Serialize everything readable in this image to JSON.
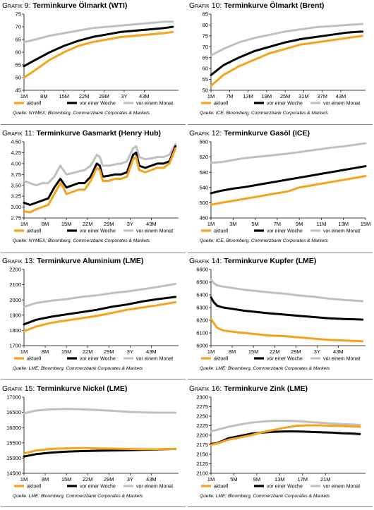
{
  "colors": {
    "aktuell": "#f7a21b",
    "woche": "#000000",
    "monat": "#c0c0c0"
  },
  "legend": [
    "aktuell",
    "vor einer Woche",
    "vor einem Monat"
  ],
  "chart_data": [
    {
      "type": "line",
      "prefix": "Grafik 9:",
      "name": "Terminkurve Ölmarkt (WTI)",
      "source": "Quelle: NYMEX; Bloomberg, Commerzbank Corporates & Markets",
      "ylim": [
        45,
        75
      ],
      "yticks": [
        45,
        50,
        55,
        60,
        65,
        70,
        75
      ],
      "xlim": [
        1,
        55
      ],
      "xticks": [
        {
          "x": 1,
          "label": "1M"
        },
        {
          "x": 8,
          "label": "8M"
        },
        {
          "x": 15,
          "label": "15M"
        },
        {
          "x": 22,
          "label": "22M"
        },
        {
          "x": 29,
          "label": "29M"
        },
        {
          "x": 36,
          "label": "3Y"
        },
        {
          "x": 43,
          "label": "43M"
        }
      ],
      "x": [
        1,
        5,
        10,
        15,
        20,
        25,
        30,
        35,
        40,
        45,
        50,
        53
      ],
      "series": [
        {
          "name": "aktuell",
          "values": [
            50,
            53,
            57,
            60,
            62.5,
            64,
            65,
            66,
            66.5,
            67,
            67.5,
            68
          ]
        },
        {
          "name": "vor einer Woche",
          "values": [
            54.5,
            57,
            60,
            62.5,
            64.5,
            66,
            67,
            68,
            68.5,
            69,
            69.5,
            70
          ]
        },
        {
          "name": "vor einem Monat",
          "values": [
            64,
            65,
            66.5,
            67.5,
            68.5,
            69.5,
            70,
            70.5,
            71,
            71.5,
            72,
            72
          ]
        }
      ]
    },
    {
      "type": "line",
      "prefix": "Grafik 10:",
      "name": "Terminkurve Ölmarkt (Brent)",
      "source": "Quelle: ICE, Bloomberg, Commerzbank Corporates & Markets",
      "ylim": [
        50,
        85
      ],
      "yticks": [
        50,
        55,
        60,
        65,
        70,
        75,
        80,
        85
      ],
      "xlim": [
        1,
        51
      ],
      "xticks": [
        {
          "x": 1,
          "label": "1M"
        },
        {
          "x": 7,
          "label": "7M"
        },
        {
          "x": 13,
          "label": "13M"
        },
        {
          "x": 19,
          "label": "19M"
        },
        {
          "x": 25,
          "label": "25M"
        },
        {
          "x": 31,
          "label": "31M"
        },
        {
          "x": 37,
          "label": "37M"
        },
        {
          "x": 43,
          "label": "43M"
        }
      ],
      "x": [
        1,
        5,
        10,
        15,
        20,
        25,
        30,
        35,
        40,
        45,
        50
      ],
      "series": [
        {
          "name": "aktuell",
          "values": [
            52,
            57,
            61,
            64,
            67,
            69,
            71,
            72,
            73,
            74,
            75
          ]
        },
        {
          "name": "vor einer Woche",
          "values": [
            57,
            61.5,
            65,
            68,
            70,
            72,
            73.5,
            74.5,
            75.5,
            76.5,
            77
          ]
        },
        {
          "name": "vor einem Monat",
          "values": [
            66,
            69,
            72,
            74,
            75.5,
            77,
            78,
            79,
            79.5,
            80,
            80.5
          ]
        }
      ]
    },
    {
      "type": "line",
      "prefix": "Grafik 11:",
      "name": "Terminkurve Gasmarkt (Henry Hub)",
      "source": "Quelle: NYMEX; Bloomberg, Commerzbank Corporates & Markets",
      "ylim": [
        2.75,
        4.5
      ],
      "yticks": [
        2.75,
        3.0,
        3.25,
        3.5,
        3.75,
        4.0,
        4.25,
        4.5
      ],
      "decimals": 2,
      "xlim": [
        1,
        52
      ],
      "xticks": [
        {
          "x": 1,
          "label": "1M"
        },
        {
          "x": 8,
          "label": "8M"
        },
        {
          "x": 15,
          "label": "15M"
        },
        {
          "x": 22,
          "label": "22M"
        },
        {
          "x": 29,
          "label": "29M"
        },
        {
          "x": 36,
          "label": "3Y"
        },
        {
          "x": 43,
          "label": "43M"
        }
      ],
      "x": [
        1,
        3,
        5,
        7,
        9,
        11,
        13,
        14,
        15,
        17,
        19,
        21,
        23,
        25,
        26,
        27,
        29,
        31,
        33,
        35,
        37,
        38,
        39,
        41,
        43,
        45,
        47,
        49,
        51
      ],
      "series": [
        {
          "name": "aktuell",
          "values": [
            2.9,
            2.88,
            2.95,
            3.0,
            3.05,
            3.3,
            3.55,
            3.45,
            3.3,
            3.35,
            3.4,
            3.4,
            3.6,
            3.9,
            3.85,
            3.6,
            3.6,
            3.65,
            3.65,
            3.7,
            4.1,
            4.15,
            3.85,
            3.8,
            3.85,
            3.9,
            3.9,
            4.0,
            4.35
          ]
        },
        {
          "name": "vor einer Woche",
          "values": [
            3.1,
            3.05,
            3.1,
            3.15,
            3.2,
            3.45,
            3.65,
            3.55,
            3.45,
            3.5,
            3.55,
            3.55,
            3.7,
            4.0,
            3.95,
            3.7,
            3.72,
            3.75,
            3.75,
            3.8,
            4.2,
            4.25,
            3.95,
            3.9,
            3.95,
            4.0,
            4.0,
            4.05,
            4.4
          ]
        },
        {
          "name": "vor einem Monat",
          "values": [
            3.6,
            3.55,
            3.5,
            3.55,
            3.55,
            3.7,
            3.95,
            3.85,
            3.75,
            3.78,
            3.82,
            3.85,
            3.95,
            4.2,
            4.15,
            3.95,
            3.95,
            3.98,
            4.0,
            4.05,
            4.35,
            4.4,
            4.15,
            4.1,
            4.12,
            4.15,
            4.15,
            4.2,
            4.45
          ]
        }
      ]
    },
    {
      "type": "line",
      "prefix": "Grafik 12:",
      "name": "Terminkurve Gasöl (ICE)",
      "source": "Quelle: ICE, Bloomberg, Commerzbank Corporates & Markets",
      "ylim": [
        460,
        660
      ],
      "yticks": [
        460,
        500,
        540,
        580,
        620,
        660
      ],
      "xlim": [
        1,
        15
      ],
      "xticks": [
        {
          "x": 1,
          "label": "1M"
        },
        {
          "x": 3,
          "label": "3M"
        },
        {
          "x": 5,
          "label": "5M"
        },
        {
          "x": 7,
          "label": "7M"
        },
        {
          "x": 9,
          "label": "9M"
        },
        {
          "x": 11,
          "label": "11M"
        },
        {
          "x": 13,
          "label": "13M"
        },
        {
          "x": 15,
          "label": "15M"
        }
      ],
      "x": [
        1,
        2,
        3,
        4,
        5,
        6,
        7,
        8,
        9,
        10,
        11,
        12,
        13,
        14,
        15
      ],
      "series": [
        {
          "name": "aktuell",
          "values": [
            495,
            500,
            505,
            510,
            515,
            520,
            525,
            530,
            540,
            545,
            550,
            555,
            560,
            565,
            570
          ]
        },
        {
          "name": "vor einer Woche",
          "values": [
            525,
            532,
            537,
            541,
            546,
            551,
            556,
            561,
            566,
            571,
            576,
            581,
            586,
            591,
            596
          ]
        },
        {
          "name": "vor einem Monat",
          "values": [
            605,
            607,
            612,
            617,
            620,
            623,
            626,
            629,
            633,
            637,
            641,
            645,
            648,
            652,
            656
          ]
        }
      ]
    },
    {
      "type": "line",
      "prefix": "Grafik 13:",
      "name": "Terminkurve Aluminium (LME)",
      "source": "Quelle: LME; Bloomberg, Commerzbank Corporates & Markets",
      "ylim": [
        1700,
        2200
      ],
      "yticks": [
        1700,
        1800,
        1900,
        2000,
        2100,
        2200
      ],
      "xlim": [
        1,
        52
      ],
      "xticks": [
        {
          "x": 1,
          "label": "1M"
        },
        {
          "x": 8,
          "label": "8M"
        },
        {
          "x": 15,
          "label": "15M"
        },
        {
          "x": 22,
          "label": "22M"
        },
        {
          "x": 29,
          "label": "29M"
        },
        {
          "x": 36,
          "label": "3Y"
        },
        {
          "x": 43,
          "label": "43M"
        }
      ],
      "x": [
        1,
        5,
        10,
        15,
        20,
        25,
        30,
        35,
        40,
        45,
        51
      ],
      "series": [
        {
          "name": "aktuell",
          "values": [
            1795,
            1825,
            1850,
            1865,
            1880,
            1895,
            1915,
            1935,
            1950,
            1965,
            1985
          ]
        },
        {
          "name": "vor einer Woche",
          "values": [
            1840,
            1870,
            1890,
            1905,
            1920,
            1935,
            1955,
            1970,
            1990,
            2005,
            2020
          ]
        },
        {
          "name": "vor einem Monat",
          "values": [
            1955,
            1980,
            1995,
            2005,
            2020,
            2030,
            2045,
            2055,
            2070,
            2085,
            2105
          ]
        }
      ]
    },
    {
      "type": "line",
      "prefix": "Grafik 14:",
      "name": "Terminkurve Kupfer (LME)",
      "source": "Quelle: LME; Bloomberg, Commerzbank Corporates & Markets",
      "ylim": [
        6000,
        6600
      ],
      "yticks": [
        6000,
        6100,
        6200,
        6300,
        6400,
        6500,
        6600
      ],
      "xlim": [
        1,
        52
      ],
      "xticks": [
        {
          "x": 1,
          "label": "1M"
        },
        {
          "x": 8,
          "label": "8M"
        },
        {
          "x": 15,
          "label": "15M"
        },
        {
          "x": 22,
          "label": "22M"
        },
        {
          "x": 29,
          "label": "29M"
        },
        {
          "x": 36,
          "label": "3Y"
        },
        {
          "x": 43,
          "label": "43M"
        }
      ],
      "x": [
        1,
        2,
        3,
        5,
        8,
        12,
        16,
        20,
        25,
        30,
        35,
        40,
        45,
        51
      ],
      "series": [
        {
          "name": "aktuell",
          "values": [
            6210,
            6175,
            6140,
            6120,
            6110,
            6100,
            6090,
            6080,
            6075,
            6065,
            6055,
            6045,
            6040,
            6035
          ]
        },
        {
          "name": "vor einer Woche",
          "values": [
            6380,
            6340,
            6315,
            6300,
            6290,
            6275,
            6265,
            6255,
            6245,
            6235,
            6225,
            6215,
            6210,
            6205
          ]
        },
        {
          "name": "vor einem Monat",
          "values": [
            6520,
            6490,
            6475,
            6465,
            6455,
            6440,
            6430,
            6420,
            6410,
            6395,
            6385,
            6370,
            6360,
            6350
          ]
        }
      ]
    },
    {
      "type": "line",
      "prefix": "Grafik 15:",
      "name": "Terminkurve Nickel (LME)",
      "source": "Quelle: LME; Bloomberg, Commerzbank Corporates & Markets",
      "ylim": [
        14500,
        17000
      ],
      "yticks": [
        14500,
        15000,
        15500,
        16000,
        16500,
        17000
      ],
      "xlim": [
        1,
        52
      ],
      "xticks": [
        {
          "x": 1,
          "label": "1M"
        },
        {
          "x": 8,
          "label": "8M"
        },
        {
          "x": 15,
          "label": "15M"
        },
        {
          "x": 22,
          "label": "22M"
        },
        {
          "x": 29,
          "label": "29M"
        },
        {
          "x": 36,
          "label": "3Y"
        },
        {
          "x": 43,
          "label": "43M"
        }
      ],
      "x": [
        1,
        5,
        10,
        15,
        20,
        25,
        30,
        35,
        40,
        45,
        51
      ],
      "series": [
        {
          "name": "aktuell",
          "values": [
            15150,
            15250,
            15300,
            15320,
            15330,
            15320,
            15310,
            15300,
            15290,
            15290,
            15300
          ]
        },
        {
          "name": "vor einer Woche",
          "values": [
            15050,
            15130,
            15180,
            15210,
            15230,
            15240,
            15250,
            15260,
            15270,
            15280,
            15300
          ]
        },
        {
          "name": "vor einem Monat",
          "values": [
            16470,
            16560,
            16600,
            16610,
            16600,
            16580,
            16550,
            16520,
            16500,
            16490,
            16490
          ]
        }
      ]
    },
    {
      "type": "line",
      "prefix": "Grafik 16:",
      "name": "Terminkurve Zink (LME)",
      "source": "Quelle: LME; Bloomberg, Commerzbank Corporates & Markets",
      "ylim": [
        2100,
        2300
      ],
      "yticks": [
        2100,
        2125,
        2150,
        2175,
        2200,
        2225,
        2250,
        2275,
        2300
      ],
      "xlim": [
        1,
        28
      ],
      "xticks": [
        {
          "x": 1,
          "label": "1M"
        },
        {
          "x": 5,
          "label": "5M"
        },
        {
          "x": 9,
          "label": "9M"
        },
        {
          "x": 13,
          "label": "13M"
        },
        {
          "x": 17,
          "label": "17M"
        },
        {
          "x": 21,
          "label": "21M"
        }
      ],
      "x": [
        1,
        2,
        3,
        4,
        6,
        8,
        10,
        12,
        14,
        16,
        18,
        20,
        22,
        24,
        26,
        27
      ],
      "series": [
        {
          "name": "aktuell",
          "values": [
            2175,
            2178,
            2183,
            2188,
            2194,
            2200,
            2208,
            2214,
            2220,
            2225,
            2226,
            2226,
            2225,
            2224,
            2223,
            2222
          ]
        },
        {
          "name": "vor einer Woche",
          "values": [
            2177,
            2179,
            2185,
            2192,
            2198,
            2204,
            2207,
            2209,
            2210,
            2210,
            2209,
            2208,
            2207,
            2205,
            2204,
            2203
          ]
        },
        {
          "name": "vor einem Monat",
          "values": [
            2210,
            2214,
            2218,
            2222,
            2228,
            2233,
            2236,
            2238,
            2238,
            2237,
            2235,
            2233,
            2231,
            2229,
            2228,
            2227
          ]
        }
      ]
    }
  ]
}
